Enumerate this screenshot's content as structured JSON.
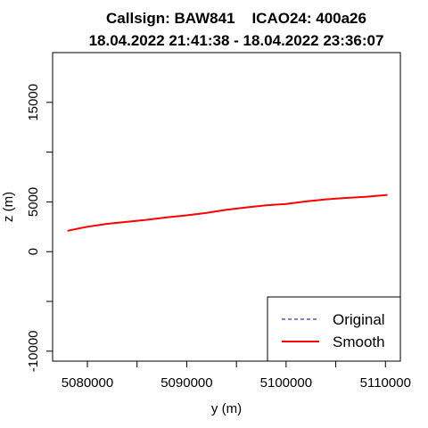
{
  "chart_data": {
    "type": "line",
    "title": "Callsign: BAW841    ICAO24: 400a26",
    "subtitle": "18.04.2022 21:41:38 - 18.04.2022 23:36:07",
    "xlabel": "y (m)",
    "ylabel": "z (m)",
    "xlim": [
      5076500,
      5111500
    ],
    "ylim": [
      -11000,
      20000
    ],
    "x_ticks": [
      5080000,
      5090000,
      5100000,
      5110000
    ],
    "x_tick_labels": [
      "5080000",
      "5090000",
      "5100000",
      "5110000"
    ],
    "x_minor_ticks": [
      5085000,
      5095000,
      5105000
    ],
    "y_ticks": [
      -10000,
      0,
      5000,
      15000
    ],
    "y_tick_labels": [
      "-10000",
      "0",
      "5000",
      "15000"
    ],
    "y_minor_ticks": [
      -5000,
      10000
    ],
    "grid": false,
    "legend_position": "bottom-right",
    "series": [
      {
        "name": "Original",
        "color": "#00008B",
        "style": "dashed",
        "x": [
          5078000,
          5080000,
          5082000,
          5084000,
          5086000,
          5088000,
          5090000,
          5092000,
          5094000,
          5096000,
          5098000,
          5100000,
          5102000,
          5104000,
          5106000,
          5108000,
          5110200
        ],
        "y": [
          2100,
          2500,
          2800,
          3000,
          3200,
          3450,
          3650,
          3900,
          4200,
          4450,
          4650,
          4800,
          5050,
          5250,
          5400,
          5500,
          5700
        ]
      },
      {
        "name": "Smooth",
        "color": "#FF0000",
        "style": "solid",
        "x": [
          5078000,
          5080000,
          5082000,
          5084000,
          5086000,
          5088000,
          5090000,
          5092000,
          5094000,
          5096000,
          5098000,
          5100000,
          5102000,
          5104000,
          5106000,
          5108000,
          5110200
        ],
        "y": [
          2100,
          2500,
          2800,
          3000,
          3200,
          3450,
          3650,
          3900,
          4200,
          4450,
          4650,
          4800,
          5050,
          5250,
          5400,
          5500,
          5700
        ]
      }
    ]
  }
}
